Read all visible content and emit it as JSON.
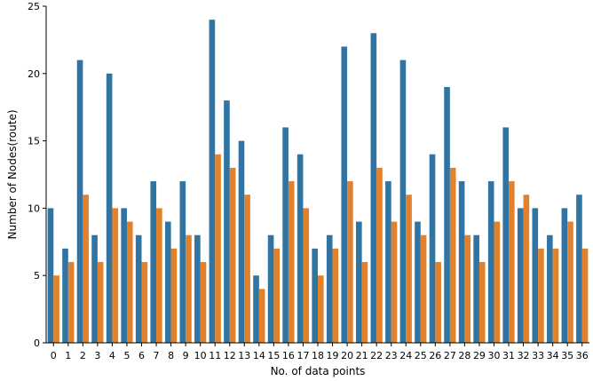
{
  "chart_data": {
    "type": "bar",
    "title": "",
    "xlabel": "No. of data points",
    "ylabel": "Number of Nodes(route)",
    "ylim": [
      0,
      25
    ],
    "yticks": [
      0,
      5,
      10,
      15,
      20,
      25
    ],
    "grid": false,
    "legend": "none",
    "categories": [
      "0",
      "1",
      "2",
      "3",
      "4",
      "5",
      "6",
      "7",
      "8",
      "9",
      "10",
      "11",
      "12",
      "13",
      "14",
      "15",
      "16",
      "17",
      "18",
      "19",
      "20",
      "21",
      "22",
      "23",
      "24",
      "25",
      "26",
      "27",
      "28",
      "29",
      "30",
      "31",
      "32",
      "33",
      "34",
      "35",
      "36"
    ],
    "series": [
      {
        "color": "#3274a1",
        "values": [
          10,
          7,
          21,
          8,
          20,
          10,
          8,
          12,
          9,
          12,
          8,
          24,
          18,
          15,
          5,
          8,
          16,
          14,
          7,
          8,
          22,
          9,
          23,
          12,
          21,
          9,
          14,
          19,
          12,
          8,
          12,
          16,
          10,
          10,
          8,
          10,
          11
        ]
      },
      {
        "color": "#e1812c",
        "values": [
          5,
          6,
          11,
          6,
          10,
          9,
          6,
          10,
          7,
          8,
          6,
          14,
          13,
          11,
          4,
          7,
          12,
          10,
          5,
          7,
          12,
          6,
          13,
          9,
          11,
          8,
          6,
          13,
          8,
          6,
          9,
          12,
          11,
          7,
          7,
          9,
          7
        ]
      }
    ]
  }
}
